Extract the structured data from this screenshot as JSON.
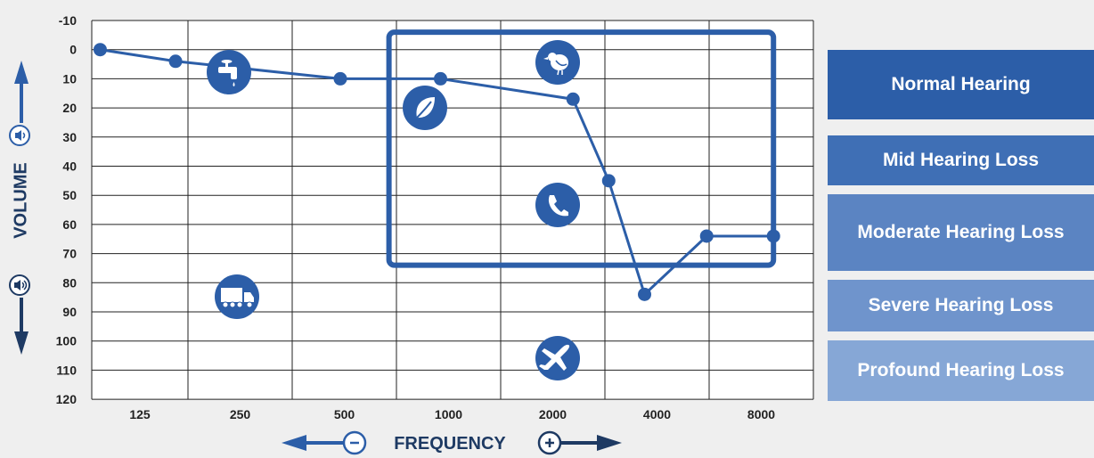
{
  "chart_data": {
    "type": "line",
    "title": "",
    "xlabel": "FREQUENCY",
    "ylabel": "VOLUME",
    "x_tick_labels": [
      "125",
      "250",
      "500",
      "1000",
      "2000",
      "4000",
      "8000"
    ],
    "y_tick_labels": [
      "-10",
      "0",
      "10",
      "20",
      "30",
      "40",
      "50",
      "60",
      "70",
      "80",
      "90",
      "100",
      "110",
      "120"
    ],
    "ylim": [
      -10,
      120
    ],
    "y_inverted": true,
    "grid": true,
    "series": [
      {
        "color": "#2c5ea8",
        "points": [
          {
            "x": 95,
            "y": 0
          },
          {
            "x": 160,
            "y": 4
          },
          {
            "x": 500,
            "y": 10
          },
          {
            "x": 1000,
            "y": 10
          },
          {
            "x": 2500,
            "y": 17
          },
          {
            "x": 3200,
            "y": 45
          },
          {
            "x": 4100,
            "y": 84
          },
          {
            "x": 6300,
            "y": 64
          },
          {
            "x": 10000,
            "y": 64
          }
        ]
      }
    ],
    "annotations": [
      {
        "type": "rectangle",
        "x_range": [
          700,
          10000
        ],
        "y_range": [
          -6,
          74
        ],
        "color": "#2c5ea8"
      }
    ],
    "sound_icons": [
      {
        "icon": "dripping-faucet-icon",
        "x": 220,
        "y": 8
      },
      {
        "icon": "bird-icon",
        "x": 2000,
        "y": 4
      },
      {
        "icon": "leaf-icon",
        "x": 840,
        "y": 21
      },
      {
        "icon": "phone-icon",
        "x": 2000,
        "y": 57
      },
      {
        "icon": "truck-icon",
        "x": 230,
        "y": 86
      },
      {
        "icon": "airplane-icon",
        "x": 2000,
        "y": 107
      }
    ],
    "axis_icons": {
      "y_top": "volume-low-icon",
      "y_bottom": "volume-high-icon",
      "x_left": "minus-circle-icon",
      "x_right": "plus-circle-icon"
    },
    "legend": [
      {
        "label": "Normal Hearing",
        "color": "#2c5ea8"
      },
      {
        "label": "Mid Hearing Loss",
        "color": "#3f6fb5"
      },
      {
        "label": "Moderate Hearing Loss",
        "color": "#5b84c2"
      },
      {
        "label": "Severe Hearing Loss",
        "color": "#6f94cc"
      },
      {
        "label": "Profound Hearing Loss",
        "color": "#86a7d6"
      }
    ],
    "legend_position": "right"
  }
}
